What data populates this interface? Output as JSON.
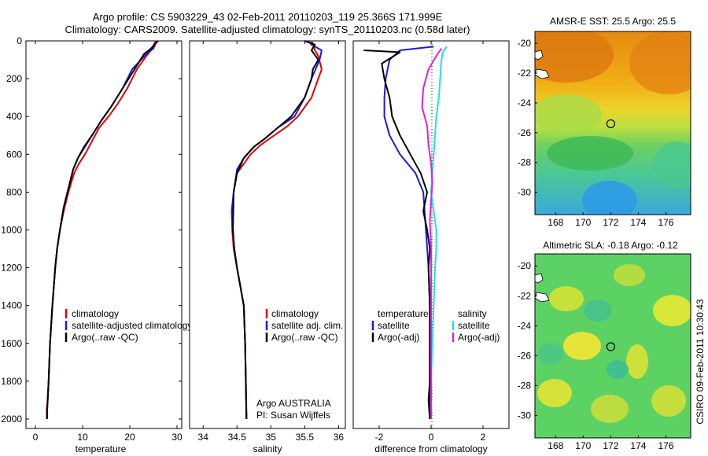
{
  "header": {
    "line1": "Argo profile: CS 5903229_43 02-Feb-2011 20110203_119 25.366S 171.999E",
    "line2": "Climatology: CARS2009. Satellite-adjusted climatology: synTS_20110203.nc (0.58d later)"
  },
  "side_label": "CSIRO 09-Feb-2011 10:30:43",
  "colors": {
    "red": "#e00000",
    "blue": "#1a1adc",
    "black": "#000000",
    "cyan": "#22e0e0",
    "magenta": "#e020e0"
  },
  "chart_data": [
    {
      "id": "temperature",
      "type": "line",
      "xlabel": "temperature",
      "ylabel": "",
      "xlim": [
        -2,
        31
      ],
      "ylim": [
        2050,
        0
      ],
      "xticks": [
        0,
        10,
        20,
        30
      ],
      "yticks": [
        0,
        200,
        400,
        600,
        800,
        1000,
        1200,
        1400,
        1600,
        1800,
        2000
      ],
      "legend": {
        "position": "lower-right",
        "entries": [
          "climatology",
          "satellite-adjusted climatology",
          "Argo(..raw -QC)"
        ]
      },
      "series": [
        {
          "name": "climatology",
          "color": "red",
          "x": [
            25.5,
            24.5,
            23.5,
            21.5,
            19.5,
            17.5,
            15.5,
            13.5,
            12.0,
            10.5,
            9.2,
            8.2,
            7.0,
            6.0,
            5.2,
            4.6,
            4.2,
            3.6,
            3.1,
            2.8,
            2.6,
            2.4,
            2.4
          ],
          "y": [
            0,
            50,
            80,
            150,
            250,
            330,
            400,
            460,
            530,
            600,
            650,
            700,
            800,
            900,
            1000,
            1100,
            1200,
            1400,
            1600,
            1800,
            1900,
            1950,
            2000
          ]
        },
        {
          "name": "satellite-adjusted climatology",
          "color": "blue",
          "x": [
            25.7,
            25.0,
            23.5,
            20.5,
            18.5,
            16.0,
            14.0,
            12.0,
            10.5,
            9.0,
            8.0,
            7.0,
            6.0,
            5.2,
            4.6,
            4.2,
            3.6,
            3.1,
            2.8,
            2.6,
            2.5,
            2.5
          ],
          "y": [
            0,
            40,
            70,
            150,
            250,
            350,
            420,
            500,
            560,
            620,
            680,
            780,
            880,
            1000,
            1100,
            1200,
            1400,
            1600,
            1800,
            1900,
            1950,
            2000
          ]
        },
        {
          "name": "Argo(..raw -QC)",
          "color": "black",
          "x": [
            26.0,
            24.5,
            23.0,
            21.0,
            18.5,
            16.0,
            14.0,
            12.0,
            10.3,
            9.0,
            8.0,
            7.0,
            6.0,
            5.2,
            4.6,
            4.2,
            3.6,
            3.1,
            2.8,
            2.6,
            2.5,
            2.5
          ],
          "y": [
            0,
            40,
            70,
            150,
            250,
            350,
            420,
            500,
            560,
            620,
            680,
            780,
            880,
            1000,
            1100,
            1200,
            1400,
            1600,
            1800,
            1900,
            1950,
            2000
          ]
        }
      ]
    },
    {
      "id": "salinity",
      "type": "line",
      "xlabel": "salinity",
      "ylabel": "",
      "xlim": [
        33.8,
        36.1
      ],
      "ylim": [
        2050,
        0
      ],
      "xticks": [
        34,
        34.5,
        35,
        35.5,
        36
      ],
      "yticks": [],
      "legend": {
        "position": "lower-right",
        "entries": [
          "climatology",
          "satellite adj. clim.",
          "Argo(..raw -QC)"
        ]
      },
      "annotations": [
        "Argo AUSTRALIA",
        "PI: Susan Wijffels"
      ],
      "series": [
        {
          "name": "climatology",
          "color": "red",
          "x": [
            35.6,
            35.65,
            35.7,
            35.75,
            35.7,
            35.6,
            35.4,
            35.25,
            35.05,
            34.85,
            34.7,
            34.6,
            34.5,
            34.45,
            34.42,
            34.43,
            34.45,
            34.5,
            34.55,
            34.6,
            34.62,
            34.63,
            34.64
          ],
          "y": [
            0,
            50,
            80,
            150,
            200,
            300,
            400,
            450,
            500,
            550,
            600,
            650,
            700,
            800,
            900,
            1000,
            1100,
            1200,
            1300,
            1400,
            1600,
            1800,
            2000
          ]
        },
        {
          "name": "satellite adj. clim.",
          "color": "blue",
          "x": [
            35.55,
            35.6,
            35.75,
            35.72,
            35.6,
            35.5,
            35.35,
            35.1,
            34.9,
            34.75,
            34.6,
            34.5,
            34.45,
            34.43,
            34.44,
            34.46,
            34.5,
            34.55,
            34.6,
            34.62,
            34.63,
            34.64
          ],
          "y": [
            0,
            20,
            50,
            100,
            200,
            300,
            400,
            460,
            520,
            560,
            620,
            680,
            800,
            900,
            1000,
            1100,
            1200,
            1300,
            1400,
            1600,
            1800,
            2000
          ]
        },
        {
          "name": "Argo(..raw -QC)",
          "color": "black",
          "x": [
            35.5,
            35.65,
            35.6,
            35.7,
            35.62,
            35.6,
            35.5,
            35.3,
            35.1,
            34.9,
            34.75,
            34.6,
            34.5,
            34.45,
            34.44,
            34.46,
            34.5,
            34.55,
            34.6,
            34.62,
            34.63,
            34.64
          ],
          "y": [
            0,
            20,
            50,
            100,
            150,
            200,
            300,
            400,
            460,
            520,
            560,
            620,
            700,
            800,
            1000,
            1100,
            1200,
            1300,
            1400,
            1600,
            1800,
            2000
          ]
        }
      ]
    },
    {
      "id": "difference",
      "type": "line",
      "xlabel": "difference from climatology",
      "ylabel": "",
      "xlim": [
        -3,
        3
      ],
      "ylim": [
        2050,
        0
      ],
      "xticks": [
        -2,
        0,
        2
      ],
      "yticks": [],
      "legend": {
        "position": "lower-center",
        "headers": [
          "temperature",
          "salinity"
        ],
        "entries": [
          "satellite",
          "Argo(-adj)",
          "satellite",
          "Argo(-adj)"
        ]
      },
      "series": [
        {
          "name": "satellite",
          "group": "temperature",
          "color": "blue",
          "x": [
            0.1,
            -1.2,
            -1.6,
            -1.75,
            -1.8,
            -1.8,
            -1.6,
            -1.2,
            -0.6,
            -0.3,
            -0.2,
            -0.1,
            -0.05,
            -0.05,
            -0.05,
            -0.05,
            -0.05,
            -0.05,
            -0.05
          ],
          "y": [
            30,
            50,
            100,
            200,
            300,
            400,
            500,
            600,
            700,
            800,
            1000,
            1200,
            1400,
            1500,
            1600,
            1700,
            1800,
            1900,
            2000
          ]
        },
        {
          "name": "Argo(-adj)",
          "group": "temperature",
          "color": "black",
          "x": [
            -2.6,
            -1.2,
            -1.9,
            -1.8,
            -1.6,
            -1.5,
            -1.2,
            -0.8,
            -0.4,
            -0.15,
            -0.3,
            -0.15,
            -0.05,
            -0.1,
            -0.05,
            -0.05,
            -0.05,
            -0.1,
            -0.05
          ],
          "y": [
            50,
            60,
            120,
            200,
            300,
            400,
            500,
            600,
            700,
            800,
            900,
            1000,
            1100,
            1200,
            1400,
            1600,
            1800,
            1900,
            2000
          ]
        },
        {
          "name": "satellite",
          "group": "salinity",
          "color": "cyan",
          "x": [
            0.6,
            0.45,
            0.4,
            0.35,
            0.3,
            0.2,
            0.15,
            0.1,
            0.05,
            0.0,
            0.1,
            0.2,
            0.2,
            0.15,
            0.1,
            0.05,
            0.0,
            0.0,
            0.0
          ],
          "y": [
            30,
            60,
            100,
            200,
            300,
            400,
            500,
            600,
            700,
            800,
            900,
            1000,
            1100,
            1200,
            1400,
            1600,
            1800,
            1900,
            2000
          ]
        },
        {
          "name": "Argo(-adj)",
          "group": "salinity",
          "color": "magenta",
          "x": [
            0.4,
            0.2,
            -0.1,
            -0.3,
            -0.35,
            -0.15,
            -0.1,
            0.0,
            0.05,
            0.0,
            -0.05,
            0.0,
            0.0,
            0.0,
            0.0,
            0.0,
            0.0,
            0.0,
            0.0
          ],
          "y": [
            40,
            80,
            150,
            250,
            350,
            450,
            550,
            650,
            750,
            850,
            950,
            1100,
            1200,
            1300,
            1400,
            1600,
            1800,
            1900,
            2000
          ]
        }
      ]
    }
  ],
  "maps": [
    {
      "id": "sst",
      "title": "AMSR-E SST: 25.5 Argo: 25.5",
      "xlim": [
        166.5,
        177.8
      ],
      "ylim": [
        -31.5,
        -19.2
      ],
      "xticks": [
        168,
        170,
        172,
        174,
        176
      ],
      "yticks": [
        -20,
        -22,
        -24,
        -26,
        -28,
        -30
      ],
      "marker": {
        "lon": 172.0,
        "lat": -25.4
      }
    },
    {
      "id": "sla",
      "title": "Altimetric SLA: -0.18 Argo: -0.12",
      "xlim": [
        166.5,
        177.8
      ],
      "ylim": [
        -31.5,
        -19.2
      ],
      "xticks": [
        168,
        170,
        172,
        174,
        176
      ],
      "yticks": [
        -20,
        -22,
        -24,
        -26,
        -28,
        -30
      ],
      "marker": {
        "lon": 172.0,
        "lat": -25.4
      }
    }
  ]
}
